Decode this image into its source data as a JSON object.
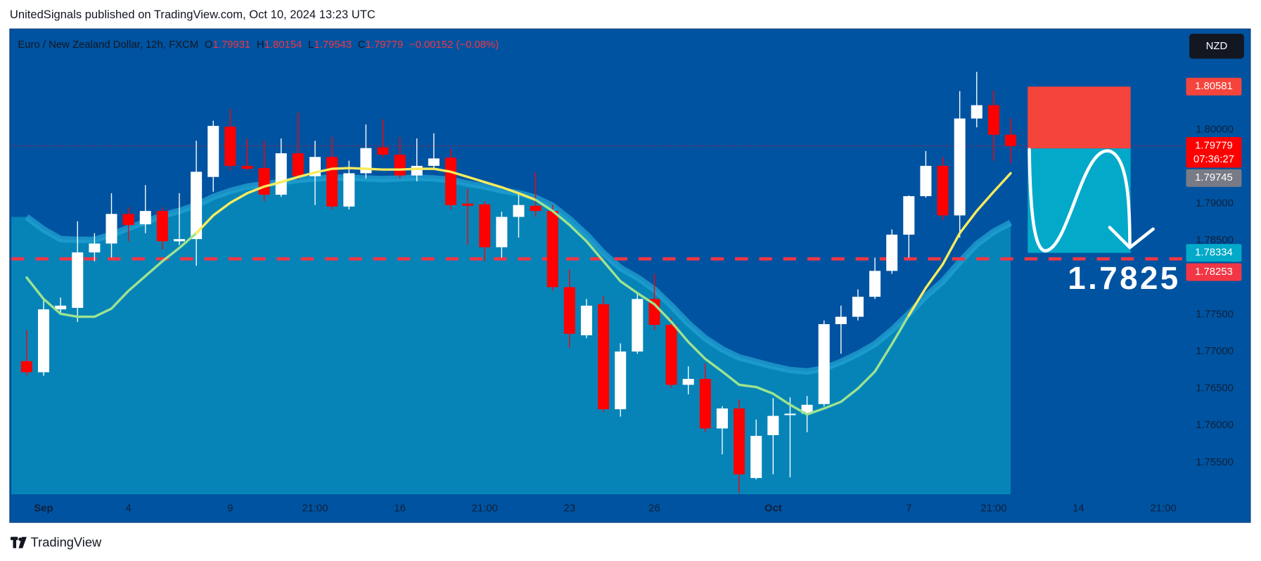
{
  "header": {
    "publisher": "UnitedSignals published on TradingView.com, Oct 10, 2024 13:23 UTC",
    "symbol": "Euro / New Zealand Dollar, 12h, FXCM",
    "o": "O",
    "h": "H",
    "l": "L",
    "c": "C",
    "change": "−0.00152 (−0.08%)",
    "currency": "NZD",
    "countdown": "07:36:27",
    "annotation": "1.7825",
    "brand": "TradingView"
  },
  "chart_data": {
    "type": "candlestick",
    "categories": [
      null,
      "Sep",
      null,
      null,
      null,
      null,
      "4",
      null,
      null,
      null,
      null,
      null,
      "9",
      null,
      null,
      null,
      null,
      "21:00",
      null,
      null,
      null,
      null,
      "16",
      null,
      null,
      null,
      null,
      "21:00",
      null,
      null,
      null,
      null,
      "23",
      null,
      null,
      null,
      null,
      "26",
      null,
      null,
      null,
      null,
      null,
      null,
      "Oct",
      null,
      null,
      null,
      null,
      null,
      null,
      null,
      "7",
      null,
      null,
      null,
      null,
      "21:00",
      null,
      null,
      null,
      null,
      "14",
      null,
      null,
      null,
      null,
      "21:00",
      null
    ],
    "open": [
      1.7687,
      1.7672,
      1.7757,
      1.7759,
      1.7834,
      1.7846,
      1.7886,
      1.7872,
      1.789,
      1.7849,
      1.7852,
      1.7936,
      1.8004,
      1.7951,
      1.7948,
      1.7912,
      1.7968,
      1.7937,
      1.7963,
      1.7896,
      1.7941,
      1.7976,
      1.7966,
      1.7938,
      1.7951,
      1.7962,
      1.79,
      1.7899,
      1.7841,
      1.7882,
      1.7897,
      1.789,
      1.7787,
      1.7722,
      1.7764,
      1.7622,
      1.77,
      1.7771,
      1.7736,
      1.7655,
      1.7663,
      1.7596,
      1.7623,
      1.7529,
      1.7587,
      1.7614,
      1.7616,
      1.7629,
      1.7737,
      1.7747,
      1.7774,
      1.7809,
      1.7858,
      1.791,
      1.7951,
      1.7884,
      1.8015,
      1.8033,
      1.79931,
      null,
      null,
      null,
      null,
      null,
      null,
      null,
      null,
      null,
      null
    ],
    "high": [
      1.7729,
      1.7773,
      1.7773,
      1.7876,
      1.786,
      1.7914,
      1.7895,
      1.7925,
      1.7895,
      1.7914,
      1.7985,
      1.8012,
      1.8028,
      1.7988,
      1.7985,
      1.7988,
      1.8023,
      1.7985,
      1.799,
      1.7958,
      1.8007,
      1.8014,
      1.799,
      1.7988,
      1.7995,
      1.7974,
      1.792,
      1.7903,
      1.7889,
      1.7914,
      1.7942,
      1.7898,
      1.7811,
      1.7771,
      1.7775,
      1.7711,
      1.778,
      1.7805,
      1.7746,
      1.768,
      1.7684,
      1.7626,
      1.7635,
      1.7608,
      1.7637,
      1.7638,
      1.764,
      1.7742,
      1.7762,
      1.7784,
      1.7827,
      1.7865,
      1.7911,
      1.7971,
      1.7963,
      1.8052,
      1.8078,
      1.8053,
      1.80154,
      null,
      null,
      null,
      null,
      null,
      null,
      null,
      null,
      null,
      null
    ],
    "low": [
      1.7668,
      1.7667,
      1.7751,
      1.774,
      1.7822,
      1.7827,
      1.7849,
      1.786,
      1.7838,
      1.7844,
      1.7816,
      1.7916,
      1.7945,
      1.7945,
      1.7903,
      1.7909,
      1.7932,
      1.7898,
      1.7892,
      1.7892,
      1.7934,
      1.7963,
      1.7934,
      1.793,
      1.7947,
      1.7892,
      1.7844,
      1.7822,
      1.7827,
      1.7854,
      1.7882,
      1.7782,
      1.7705,
      1.7718,
      1.7618,
      1.7612,
      1.7697,
      1.7729,
      1.7651,
      1.7642,
      1.7591,
      1.7561,
      1.7509,
      1.7527,
      1.7534,
      1.753,
      1.7591,
      1.7626,
      1.7697,
      1.7742,
      1.7771,
      1.7805,
      1.7827,
      1.7908,
      1.7878,
      1.7854,
      1.8003,
      1.7958,
      1.79543,
      null,
      null,
      null,
      null,
      null,
      null,
      null,
      null,
      null,
      null
    ],
    "close": [
      1.7672,
      1.7757,
      1.7762,
      1.7834,
      1.7846,
      1.7886,
      1.7871,
      1.789,
      1.7849,
      1.7852,
      1.7943,
      1.8005,
      1.7951,
      1.7947,
      1.7912,
      1.7968,
      1.7937,
      1.7963,
      1.7896,
      1.7941,
      1.7975,
      1.7966,
      1.7938,
      1.7951,
      1.7961,
      1.7898,
      1.7897,
      1.7841,
      1.7882,
      1.7898,
      1.789,
      1.7787,
      1.7724,
      1.7762,
      1.7622,
      1.77,
      1.7771,
      1.7736,
      1.7655,
      1.7663,
      1.7596,
      1.7623,
      1.7534,
      1.7586,
      1.7613,
      1.7616,
      1.7628,
      1.7737,
      1.7747,
      1.7774,
      1.7809,
      1.7858,
      1.791,
      1.7951,
      1.7884,
      1.8015,
      1.8033,
      1.7993,
      1.79779,
      null,
      null,
      null,
      null,
      null,
      null,
      null,
      null,
      null,
      null
    ],
    "up_color": "#ffffff",
    "down_color": "#ff0000",
    "ma": {
      "values": [
        1.78,
        1.7771,
        1.7751,
        1.7747,
        1.7747,
        1.7758,
        1.7782,
        1.7802,
        1.7822,
        1.784,
        1.786,
        1.7884,
        1.7901,
        1.7914,
        1.7923,
        1.7929,
        1.7936,
        1.7942,
        1.7947,
        1.7948,
        1.7947,
        1.7946,
        1.7946,
        1.7947,
        1.7947,
        1.7943,
        1.7936,
        1.7929,
        1.7922,
        1.7914,
        1.7905,
        1.789,
        1.7871,
        1.7849,
        1.7822,
        1.7795,
        1.7779,
        1.7764,
        1.774,
        1.7713,
        1.769,
        1.7673,
        1.7655,
        1.7652,
        1.7643,
        1.7628,
        1.7615,
        1.7623,
        1.7632,
        1.765,
        1.7673,
        1.771,
        1.7749,
        1.7786,
        1.7818,
        1.786,
        1.789,
        1.7916,
        1.7941,
        null,
        null,
        null,
        null,
        null,
        null,
        null,
        null,
        null,
        null
      ],
      "colors": [
        "#9de38f",
        "#9de38f",
        "#9de38f",
        "#9de38f",
        "#9de38f",
        "#9de38f",
        "#9de38f",
        "#9de38f",
        "#9de38f",
        "#9de38f",
        "#9de38f",
        "#f7eb5e",
        "#f7eb5e",
        "#f7eb5e",
        "#f7eb5e",
        "#f7eb5e",
        "#f7eb5e",
        "#f7eb5e",
        "#f7eb5e",
        "#f7eb5e",
        "#f7eb5e",
        "#f7eb5e",
        "#f7eb5e",
        "#f7eb5e",
        "#f7eb5e",
        "#f7eb5e",
        "#f7eb5e",
        "#f7eb5e",
        "#f7eb5e",
        "#f7eb5e",
        "#f7eb5e",
        "#9de38f",
        "#9de38f",
        "#9de38f",
        "#9de38f",
        "#9de38f",
        "#9de38f",
        "#9de38f",
        "#9de38f",
        "#9de38f",
        "#9de38f",
        "#9de38f",
        "#9de38f",
        "#9de38f",
        "#9de38f",
        "#9de38f",
        "#9de38f",
        "#9de38f",
        "#9de38f",
        "#9de38f",
        "#9de38f",
        "#9de38f",
        "#9de38f",
        "#f7eb5e",
        "#f7eb5e",
        "#f7eb5e",
        "#f7eb5e",
        "#f7eb5e",
        "#f7eb5e",
        null,
        null,
        null,
        null,
        null,
        null,
        null,
        null,
        null,
        null
      ]
    },
    "band": {
      "values": [
        1.7882,
        1.7865,
        1.7852,
        1.7851,
        1.7851,
        1.7858,
        1.7867,
        1.7875,
        1.7884,
        1.789,
        1.7898,
        1.7909,
        1.7917,
        1.7923,
        1.7926,
        1.7929,
        1.7932,
        1.7934,
        1.7935,
        1.7935,
        1.7934,
        1.7933,
        1.7934,
        1.7935,
        1.7934,
        1.7932,
        1.7927,
        1.7923,
        1.7918,
        1.7914,
        1.7908,
        1.7897,
        1.7879,
        1.7858,
        1.7833,
        1.7813,
        1.78,
        1.7784,
        1.7762,
        1.7738,
        1.7718,
        1.7703,
        1.7692,
        1.7686,
        1.768,
        1.7675,
        1.7673,
        1.7677,
        1.7686,
        1.7697,
        1.771,
        1.7729,
        1.7751,
        1.7775,
        1.7795,
        1.7821,
        1.7845,
        1.7862,
        1.7874,
        null,
        null,
        null,
        null,
        null,
        null,
        null,
        null,
        null,
        null
      ],
      "color": "#0684b8",
      "line_color": "#22a3d3"
    },
    "position": {
      "stop": 1.80581,
      "entry": 1.79745,
      "target": 1.78334,
      "stop_color": "#f5443c",
      "target_color": "#03a9c9",
      "entry_color": "#787b86"
    },
    "level": 1.78253,
    "level_color": "#f23645",
    "ylim": [
      1.7507,
      1.8135
    ],
    "yticks": [
      {
        "value": 1.8,
        "label": "1.80000"
      },
      {
        "value": 1.79,
        "label": "1.79000"
      },
      {
        "value": 1.785,
        "label": "1.78500"
      },
      {
        "value": 1.775,
        "label": "1.77500"
      },
      {
        "value": 1.77,
        "label": "1.77000"
      },
      {
        "value": 1.765,
        "label": "1.76500"
      },
      {
        "value": 1.76,
        "label": "1.76000"
      },
      {
        "value": 1.755,
        "label": "1.75500"
      }
    ],
    "grid": false
  }
}
